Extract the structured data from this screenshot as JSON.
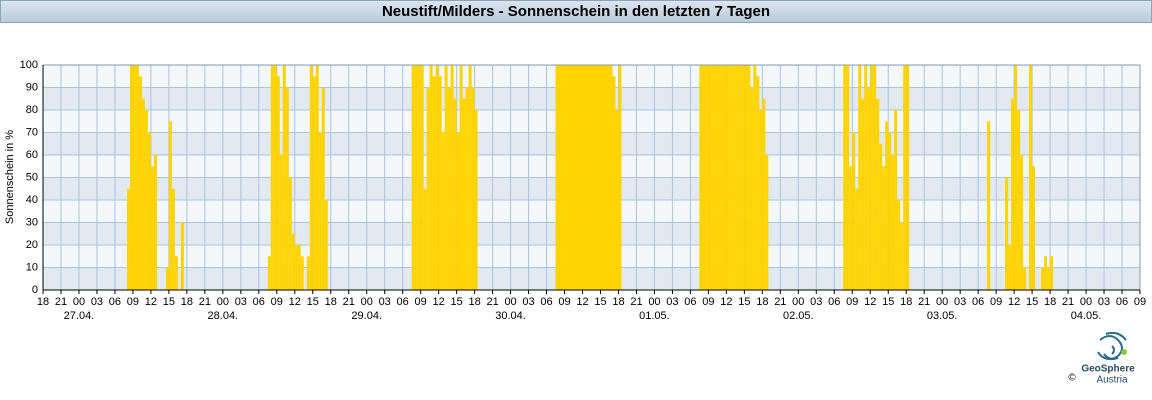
{
  "chart_data": {
    "type": "bar",
    "title": "Neustift/Milders - Sonnenschein in den letzten 7 Tagen",
    "y_label": "Sonnenschein in %",
    "color": "#ffd400",
    "grid": true,
    "band_colors": [
      "#e3e9f1",
      "#f5f8fb"
    ],
    "xlim": [
      0,
      183
    ],
    "ylim": [
      0,
      100
    ],
    "yticks": [
      0,
      10,
      20,
      30,
      40,
      50,
      60,
      70,
      80,
      90,
      100
    ],
    "xticks": [
      {
        "value": 0,
        "label": "18"
      },
      {
        "value": 3,
        "label": "21"
      },
      {
        "value": 6,
        "label": "00"
      },
      {
        "value": 9,
        "label": "03"
      },
      {
        "value": 12,
        "label": "06"
      },
      {
        "value": 15,
        "label": "09"
      },
      {
        "value": 18,
        "label": "12"
      },
      {
        "value": 21,
        "label": "15"
      },
      {
        "value": 24,
        "label": "18"
      },
      {
        "value": 27,
        "label": "21"
      },
      {
        "value": 30,
        "label": "00"
      },
      {
        "value": 33,
        "label": "03"
      },
      {
        "value": 36,
        "label": "06"
      },
      {
        "value": 39,
        "label": "09"
      },
      {
        "value": 42,
        "label": "12"
      },
      {
        "value": 45,
        "label": "15"
      },
      {
        "value": 48,
        "label": "18"
      },
      {
        "value": 51,
        "label": "21"
      },
      {
        "value": 54,
        "label": "00"
      },
      {
        "value": 57,
        "label": "03"
      },
      {
        "value": 60,
        "label": "06"
      },
      {
        "value": 63,
        "label": "09"
      },
      {
        "value": 66,
        "label": "12"
      },
      {
        "value": 69,
        "label": "15"
      },
      {
        "value": 72,
        "label": "18"
      },
      {
        "value": 75,
        "label": "21"
      },
      {
        "value": 78,
        "label": "00"
      },
      {
        "value": 81,
        "label": "03"
      },
      {
        "value": 84,
        "label": "06"
      },
      {
        "value": 87,
        "label": "09"
      },
      {
        "value": 90,
        "label": "12"
      },
      {
        "value": 93,
        "label": "15"
      },
      {
        "value": 96,
        "label": "18"
      },
      {
        "value": 99,
        "label": "21"
      },
      {
        "value": 102,
        "label": "00"
      },
      {
        "value": 105,
        "label": "03"
      },
      {
        "value": 108,
        "label": "06"
      },
      {
        "value": 111,
        "label": "09"
      },
      {
        "value": 114,
        "label": "12"
      },
      {
        "value": 117,
        "label": "15"
      },
      {
        "value": 120,
        "label": "18"
      },
      {
        "value": 123,
        "label": "21"
      },
      {
        "value": 126,
        "label": "00"
      },
      {
        "value": 129,
        "label": "03"
      },
      {
        "value": 132,
        "label": "06"
      },
      {
        "value": 135,
        "label": "09"
      },
      {
        "value": 138,
        "label": "12"
      },
      {
        "value": 141,
        "label": "15"
      },
      {
        "value": 144,
        "label": "18"
      },
      {
        "value": 147,
        "label": "21"
      },
      {
        "value": 150,
        "label": "00"
      },
      {
        "value": 153,
        "label": "03"
      },
      {
        "value": 156,
        "label": "06"
      },
      {
        "value": 159,
        "label": "09"
      },
      {
        "value": 162,
        "label": "12"
      },
      {
        "value": 165,
        "label": "15"
      },
      {
        "value": 168,
        "label": "18"
      },
      {
        "value": 171,
        "label": "21"
      },
      {
        "value": 174,
        "label": "00"
      },
      {
        "value": 177,
        "label": "03"
      },
      {
        "value": 180,
        "label": "06"
      },
      {
        "value": 183,
        "label": "09"
      }
    ],
    "date_ticks": [
      {
        "value": 6,
        "label": "27.04."
      },
      {
        "value": 30,
        "label": "28.04."
      },
      {
        "value": 54,
        "label": "29.04."
      },
      {
        "value": 78,
        "label": "30.04."
      },
      {
        "value": 102,
        "label": "01.05."
      },
      {
        "value": 126,
        "label": "02.05."
      },
      {
        "value": 150,
        "label": "03.05."
      },
      {
        "value": 174,
        "label": "04.05."
      }
    ],
    "x": [
      14,
      14.5,
      15,
      15.5,
      16,
      16.5,
      17,
      17.5,
      18,
      18.5,
      20.5,
      21,
      21.5,
      22,
      23,
      37.5,
      38,
      38.5,
      39,
      39.5,
      40,
      40.5,
      41,
      41.5,
      42,
      42.5,
      43,
      44,
      44.5,
      45,
      45.5,
      46,
      46.5,
      47,
      61.5,
      62,
      62.5,
      63,
      63.5,
      64,
      64.5,
      65,
      65.5,
      66,
      66.5,
      67,
      67.5,
      68,
      68.5,
      69,
      69.5,
      70,
      70.5,
      71,
      71.5,
      72,
      85.5,
      86,
      86.5,
      87,
      87.5,
      88,
      88.5,
      89,
      89.5,
      90,
      90.5,
      91,
      91.5,
      92,
      92.5,
      93,
      93.5,
      94,
      94.5,
      95,
      95.5,
      96,
      109.5,
      110,
      110.5,
      111,
      111.5,
      112,
      112.5,
      113,
      113.5,
      114,
      114.5,
      115,
      115.5,
      116,
      116.5,
      117,
      117.5,
      118,
      118.5,
      119,
      119.5,
      120,
      120.5,
      133.5,
      134,
      134.5,
      135,
      135.5,
      136,
      136.5,
      137,
      137.5,
      138,
      138.5,
      139,
      139.5,
      140,
      140.5,
      141,
      141.5,
      142,
      142.5,
      143,
      143.5,
      144,
      157.5,
      160.5,
      161,
      161.5,
      162,
      162.5,
      163,
      163.5,
      164.5,
      165,
      166.5,
      167,
      167.5,
      168
    ],
    "values": [
      45,
      100,
      100,
      100,
      95,
      85,
      80,
      70,
      55,
      60,
      10,
      75,
      45,
      15,
      30,
      15,
      100,
      100,
      95,
      60,
      100,
      90,
      50,
      25,
      20,
      20,
      15,
      15,
      100,
      95,
      100,
      70,
      90,
      40,
      100,
      100,
      100,
      100,
      45,
      90,
      100,
      95,
      100,
      95,
      70,
      100,
      90,
      100,
      85,
      70,
      100,
      85,
      90,
      100,
      90,
      80,
      100,
      100,
      100,
      100,
      100,
      100,
      100,
      100,
      100,
      100,
      100,
      100,
      100,
      100,
      100,
      100,
      100,
      100,
      100,
      95,
      80,
      100,
      100,
      100,
      100,
      100,
      100,
      100,
      100,
      100,
      100,
      100,
      100,
      100,
      100,
      100,
      100,
      100,
      100,
      90,
      100,
      95,
      80,
      85,
      60,
      100,
      100,
      55,
      70,
      45,
      100,
      85,
      100,
      90,
      100,
      100,
      85,
      65,
      55,
      75,
      70,
      60,
      80,
      40,
      30,
      100,
      100,
      75,
      50,
      20,
      85,
      100,
      80,
      60,
      10,
      100,
      55,
      10,
      15,
      10,
      15
    ],
    "logo_text": "GeoSphere",
    "logo_sub": "Austria",
    "copyright": "©"
  }
}
